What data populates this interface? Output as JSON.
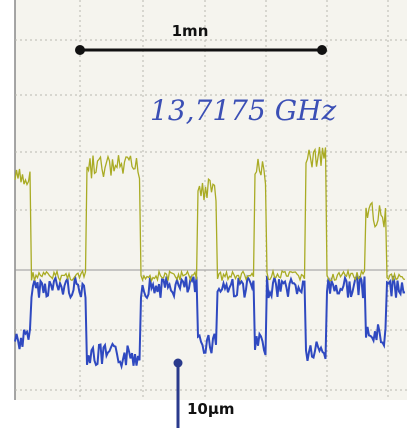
{
  "scale_bar": {
    "label": "1mn"
  },
  "annotation": "13,7175 GHz",
  "vertical_scale": {
    "label": "10µm"
  }
}
